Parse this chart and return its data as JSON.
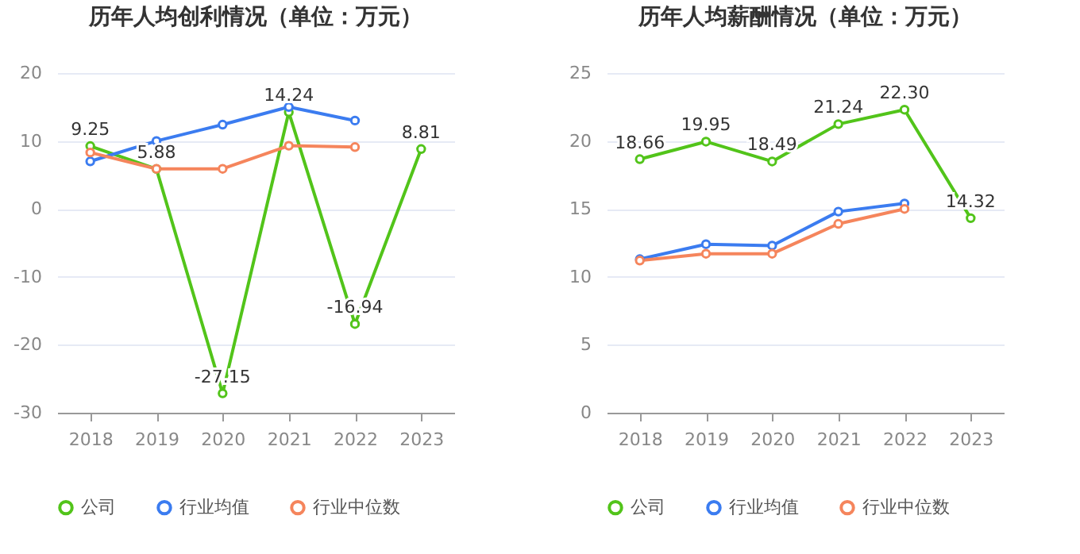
{
  "chart_data": [
    {
      "type": "line",
      "title": "历年人均创利情况（单位：万元）",
      "categories": [
        "2018",
        "2019",
        "2020",
        "2021",
        "2022",
        "2023"
      ],
      "ylim": [
        -30,
        20
      ],
      "yticks": [
        -30,
        -20,
        -10,
        0,
        10,
        20
      ],
      "grid": "y",
      "legend": "bottom",
      "marker": "circle",
      "series": [
        {
          "name": "公司",
          "color": "#52c41a",
          "values": [
            9.25,
            5.88,
            -27.15,
            14.24,
            -16.94,
            8.81
          ],
          "value_labels": [
            "9.25",
            "5.88",
            "-27.15",
            "14.24",
            "-16.94",
            "8.81"
          ]
        },
        {
          "name": "行业均值",
          "color": "#3b7cf0",
          "values": [
            7.0,
            10.0,
            12.4,
            15.0,
            13.0,
            null
          ]
        },
        {
          "name": "行业中位数",
          "color": "#f5855c",
          "values": [
            8.3,
            5.9,
            5.9,
            9.3,
            9.1,
            null
          ]
        }
      ]
    },
    {
      "type": "line",
      "title": "历年人均薪酬情况（单位：万元）",
      "categories": [
        "2018",
        "2019",
        "2020",
        "2021",
        "2022",
        "2023"
      ],
      "ylim": [
        0,
        25
      ],
      "yticks": [
        0,
        5,
        10,
        15,
        20,
        25
      ],
      "grid": "y",
      "legend": "bottom",
      "marker": "circle",
      "series": [
        {
          "name": "公司",
          "color": "#52c41a",
          "values": [
            18.66,
            19.95,
            18.49,
            21.24,
            22.3,
            14.32
          ],
          "value_labels": [
            "18.66",
            "19.95",
            "18.49",
            "21.24",
            "22.30",
            "14.32"
          ]
        },
        {
          "name": "行业均值",
          "color": "#3b7cf0",
          "values": [
            11.3,
            12.4,
            12.3,
            14.8,
            15.4,
            null
          ]
        },
        {
          "name": "行业中位数",
          "color": "#f5855c",
          "values": [
            11.2,
            11.7,
            11.7,
            13.9,
            15.0,
            null
          ]
        }
      ]
    }
  ]
}
